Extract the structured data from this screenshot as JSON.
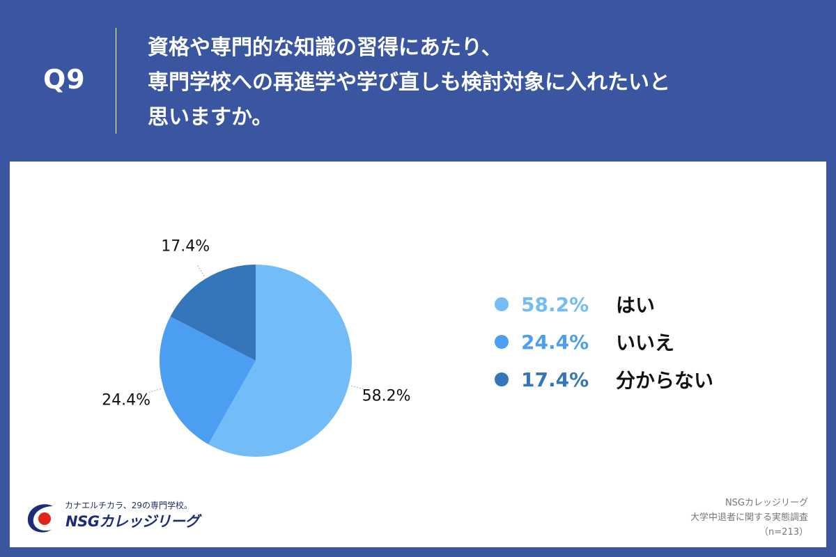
{
  "header": {
    "question_number": "Q9",
    "question_lines": [
      "資格や専門的な知識の習得にあたり、",
      "専門学校への再進学や学び直しも検討対象に入れたいと",
      "思いますか。"
    ]
  },
  "chart_data": {
    "type": "pie",
    "title": "",
    "slices": [
      {
        "label": "はい",
        "value": 58.2,
        "display": "58.2%",
        "color": "#72bdf8"
      },
      {
        "label": "いいえ",
        "value": 24.4,
        "display": "24.4%",
        "color": "#4c9ef2"
      },
      {
        "label": "分からない",
        "value": 17.4,
        "display": "17.4%",
        "color": "#3576ba"
      }
    ],
    "legend_position": "right"
  },
  "footer": {
    "logo_tagline": "カナエルチカラ、29の専門学校。",
    "logo_name": "NSGカレッジリーグ",
    "source_lines": [
      "NSGカレッジリーグ",
      "大学中退者に関する実態調査",
      "（n=213）"
    ]
  },
  "colors": {
    "background": "#3b56a1",
    "panel": "#ffffff",
    "brand_red": "#e2231a",
    "brand_navy": "#1c2c78"
  }
}
